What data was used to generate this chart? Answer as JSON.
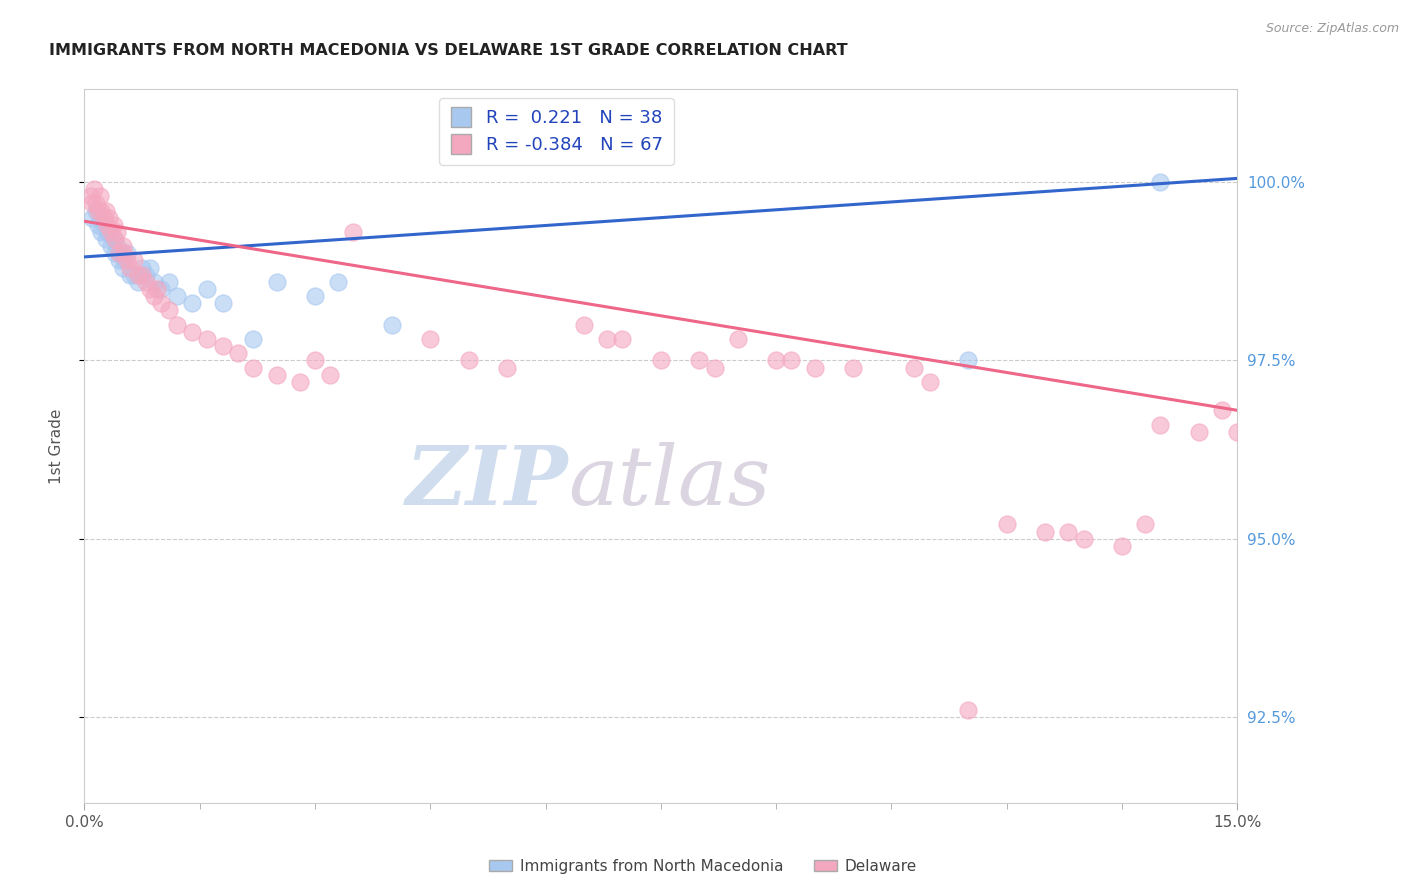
{
  "title": "IMMIGRANTS FROM NORTH MACEDONIA VS DELAWARE 1ST GRADE CORRELATION CHART",
  "source": "Source: ZipAtlas.com",
  "ylabel": "1st Grade",
  "yticks": [
    92.5,
    95.0,
    97.5,
    100.0
  ],
  "ytick_labels": [
    "92.5%",
    "95.0%",
    "97.5%",
    "100.0%"
  ],
  "xmin": 0.0,
  "xmax": 15.0,
  "ymin": 91.3,
  "ymax": 101.3,
  "blue_R": 0.221,
  "blue_N": 38,
  "pink_R": -0.384,
  "pink_N": 67,
  "blue_color": "#A8C8F0",
  "pink_color": "#F4A8C0",
  "blue_line_color": "#3366CC",
  "pink_line_color": "#EE6688",
  "watermark_zip": "ZIP",
  "watermark_atlas": "atlas",
  "legend_label_blue": "Immigrants from North Macedonia",
  "legend_label_pink": "Delaware",
  "blue_x": [
    0.1,
    0.15,
    0.18,
    0.2,
    0.22,
    0.25,
    0.28,
    0.3,
    0.32,
    0.35,
    0.38,
    0.4,
    0.42,
    0.45,
    0.48,
    0.5,
    0.52,
    0.55,
    0.6,
    0.65,
    0.7,
    0.75,
    0.8,
    0.85,
    0.9,
    1.0,
    1.1,
    1.2,
    1.4,
    1.6,
    1.8,
    2.2,
    2.5,
    3.0,
    3.3,
    4.0,
    11.5,
    14.0
  ],
  "blue_y": [
    99.5,
    99.6,
    99.4,
    99.5,
    99.3,
    99.4,
    99.2,
    99.3,
    99.3,
    99.1,
    99.2,
    99.0,
    99.1,
    98.9,
    99.0,
    98.8,
    98.9,
    99.0,
    98.7,
    98.7,
    98.6,
    98.8,
    98.7,
    98.8,
    98.6,
    98.5,
    98.6,
    98.4,
    98.3,
    98.5,
    98.3,
    97.8,
    98.6,
    98.4,
    98.6,
    98.0,
    97.5,
    100.0
  ],
  "pink_x": [
    0.08,
    0.1,
    0.12,
    0.15,
    0.18,
    0.2,
    0.22,
    0.25,
    0.28,
    0.3,
    0.32,
    0.35,
    0.38,
    0.4,
    0.42,
    0.45,
    0.5,
    0.52,
    0.55,
    0.6,
    0.65,
    0.7,
    0.75,
    0.8,
    0.85,
    0.9,
    0.95,
    1.0,
    1.1,
    1.2,
    1.4,
    1.6,
    1.8,
    2.0,
    2.2,
    2.5,
    2.8,
    3.0,
    3.2,
    3.5,
    4.5,
    5.0,
    5.5,
    6.5,
    7.0,
    8.0,
    9.0,
    9.5,
    10.0,
    11.0,
    12.0,
    12.5,
    13.0,
    13.5,
    14.0,
    14.5,
    15.0,
    8.5,
    9.2,
    10.8,
    11.5,
    12.8,
    13.8,
    14.8,
    6.8,
    7.5,
    8.2
  ],
  "pink_y": [
    99.8,
    99.7,
    99.9,
    99.7,
    99.6,
    99.8,
    99.6,
    99.5,
    99.6,
    99.4,
    99.5,
    99.3,
    99.4,
    99.2,
    99.3,
    99.0,
    99.1,
    99.0,
    98.9,
    98.8,
    98.9,
    98.7,
    98.7,
    98.6,
    98.5,
    98.4,
    98.5,
    98.3,
    98.2,
    98.0,
    97.9,
    97.8,
    97.7,
    97.6,
    97.4,
    97.3,
    97.2,
    97.5,
    97.3,
    99.3,
    97.8,
    97.5,
    97.4,
    98.0,
    97.8,
    97.5,
    97.5,
    97.4,
    97.4,
    97.2,
    95.2,
    95.1,
    95.0,
    94.9,
    96.6,
    96.5,
    96.5,
    97.8,
    97.5,
    97.4,
    92.6,
    95.1,
    95.2,
    96.8,
    97.8,
    97.5,
    97.4
  ]
}
